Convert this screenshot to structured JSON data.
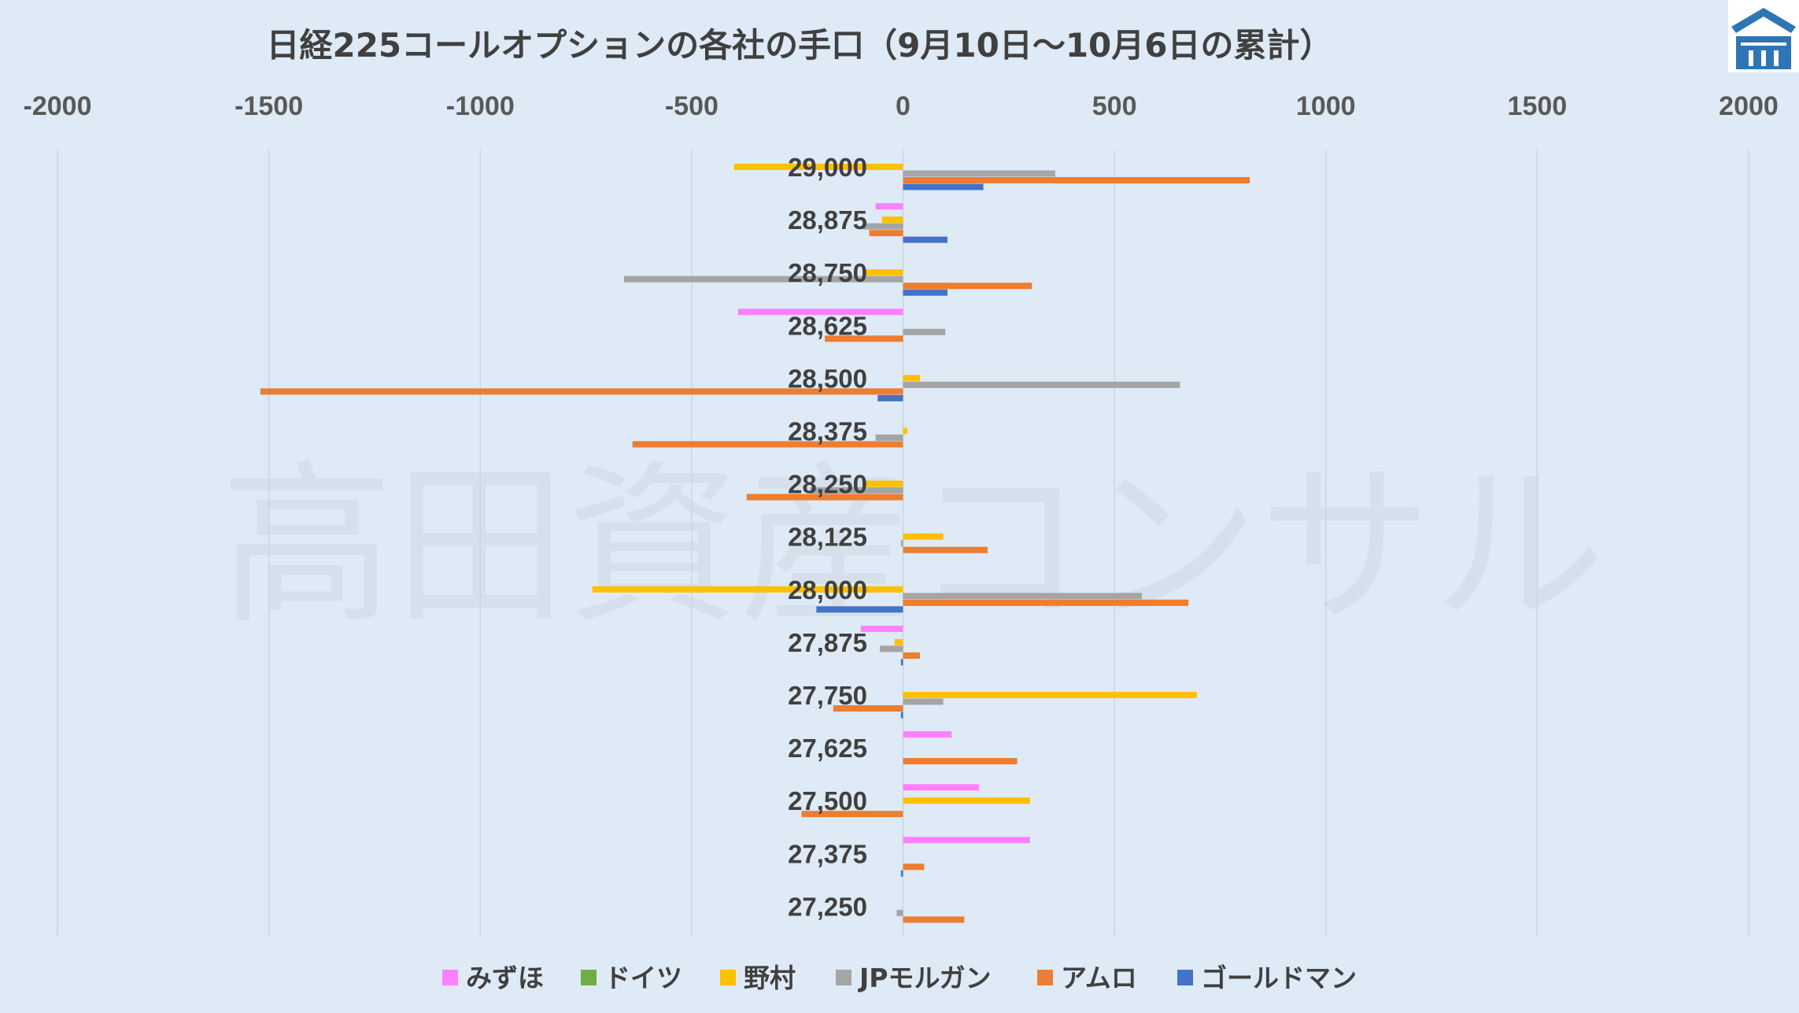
{
  "watermark": "高田資産コンサル",
  "chart_data": {
    "type": "bar",
    "orientation": "horizontal",
    "title": "日経225コールオプションの各社の手口（9月10日～10月6日の累計）",
    "xlim": [
      -2000,
      2000
    ],
    "xticks": [
      -2000,
      -1500,
      -1000,
      -500,
      0,
      500,
      1000,
      1500,
      2000
    ],
    "axis_position": "top",
    "grid": true,
    "legend_position": "bottom",
    "categories": [
      "29,000",
      "28,875",
      "28,750",
      "28,625",
      "28,500",
      "28,375",
      "28,250",
      "28,125",
      "28,000",
      "27,875",
      "27,750",
      "27,625",
      "27,500",
      "27,375",
      "27,250"
    ],
    "series": [
      {
        "name": "みずほ",
        "color": "#ff80ff",
        "values": [
          0,
          -65,
          0,
          -390,
          0,
          0,
          0,
          0,
          0,
          -100,
          0,
          115,
          180,
          300,
          0
        ]
      },
      {
        "name": "ドイツ",
        "color": "#70ad47",
        "values": [
          0,
          0,
          0,
          0,
          0,
          0,
          0,
          0,
          0,
          0,
          0,
          0,
          0,
          0,
          0
        ]
      },
      {
        "name": "野村",
        "color": "#ffc000",
        "values": [
          -400,
          -50,
          -90,
          0,
          40,
          10,
          -90,
          95,
          -735,
          -20,
          695,
          0,
          300,
          0,
          0
        ]
      },
      {
        "name": "JPモルガン",
        "color": "#a5a5a5",
        "values": [
          360,
          -95,
          -660,
          100,
          655,
          -65,
          -220,
          -5,
          565,
          -55,
          95,
          0,
          0,
          0,
          -15
        ]
      },
      {
        "name": "アムロ",
        "color": "#ed7d31",
        "values": [
          820,
          -80,
          305,
          -185,
          -1520,
          -640,
          -370,
          200,
          675,
          40,
          -165,
          270,
          -240,
          50,
          145
        ]
      },
      {
        "name": "ゴールドマン",
        "color": "#4472c4",
        "values": [
          190,
          105,
          105,
          0,
          -60,
          0,
          0,
          0,
          -205,
          -5,
          -5,
          0,
          0,
          -5,
          0
        ]
      }
    ]
  }
}
